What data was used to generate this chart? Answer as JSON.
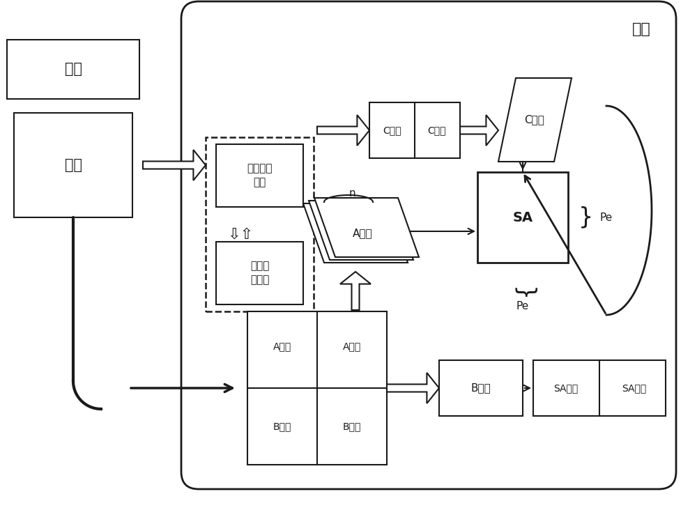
{
  "bg_color": "#ffffff",
  "line_color": "#1a1a1a",
  "title_pian_wai": "片外",
  "title_pian_shang": "片上",
  "label_wai_cun": "外存",
  "label_dizhi": "地址映射\n模块",
  "label_chongtu": "冲突处\n理模块",
  "label_C_cache1": "C缓存",
  "label_C_cache2": "C缓存",
  "label_C_matrix": "C矩阵",
  "label_A_matrix": "A矩阵",
  "label_SA": "SA",
  "label_Pe_right": "Pe",
  "label_Pe_bottom": "Pe",
  "label_n": "n",
  "label_A_cache1": "A缓存",
  "label_A_cache2": "A缓存",
  "label_B_cache1": "B缓存",
  "label_B_cache2": "B缓存",
  "label_B_matrix": "B矩阵",
  "label_SA_cache1": "SA缓存",
  "label_SA_cache2": "SA缓存"
}
